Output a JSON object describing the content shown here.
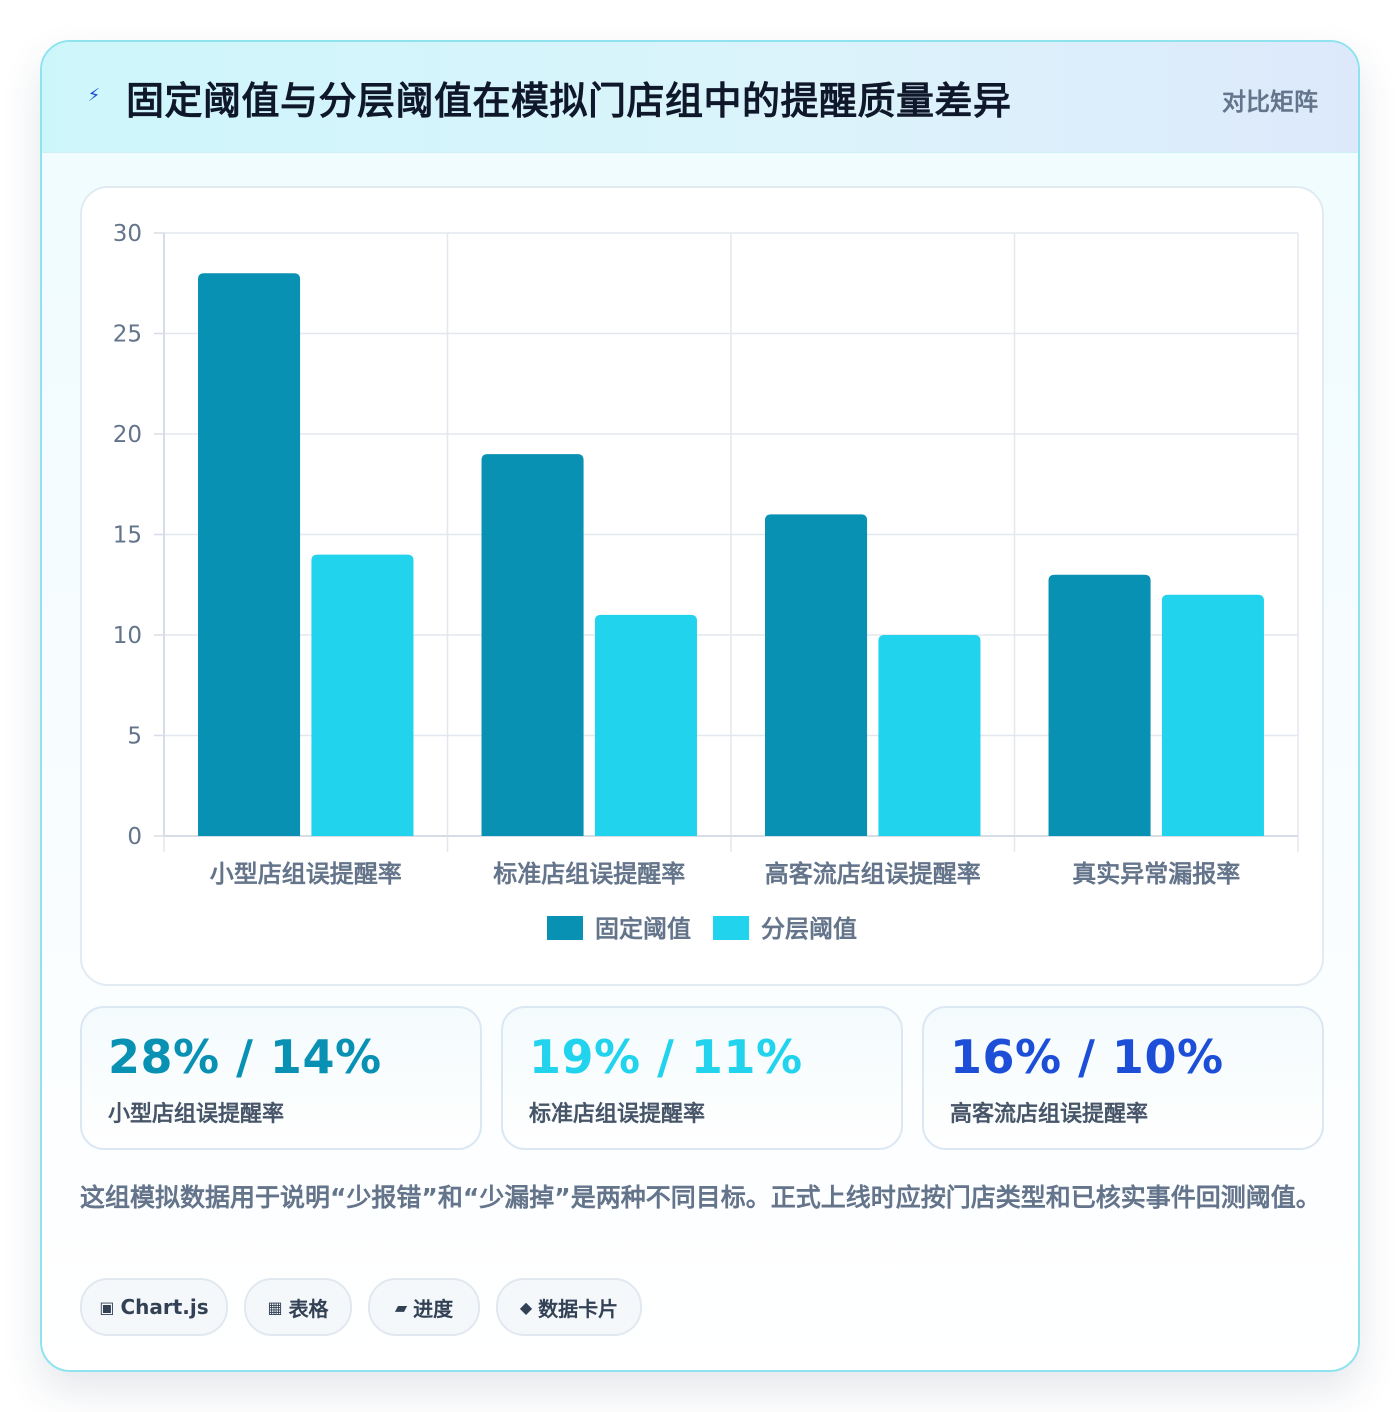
{
  "header": {
    "icon": "lightning-icon",
    "title": "固定阈值与分层阈值在模拟门店组中的提醒质量差异",
    "tag": "对比矩阵"
  },
  "colors": {
    "fixed": "#0891b2",
    "tiered": "#22d3ee",
    "stat1": "#0891b2",
    "stat2": "#22d3ee",
    "stat3": "#1d4ed8"
  },
  "chart_data": {
    "type": "bar",
    "categories": [
      "小型店组误提醒率",
      "标准店组误提醒率",
      "高客流店组误提醒率",
      "真实异常漏报率"
    ],
    "series": [
      {
        "name": "固定阈值",
        "values": [
          28,
          19,
          16,
          13
        ],
        "color": "#0891b2"
      },
      {
        "name": "分层阈值",
        "values": [
          14,
          11,
          10,
          12
        ],
        "color": "#22d3ee"
      }
    ],
    "ylim": [
      0,
      30
    ],
    "yticks": [
      "0",
      "5",
      "10",
      "15",
      "20",
      "25",
      "30"
    ],
    "grid": true,
    "legend_position": "bottom"
  },
  "stats": [
    {
      "value": "28% / 14%",
      "label": "小型店组误提醒率"
    },
    {
      "value": "19% / 11%",
      "label": "标准店组误提醒率"
    },
    {
      "value": "16% / 10%",
      "label": "高客流店组误提醒率"
    }
  ],
  "note": "这组模拟数据用于说明“少报错”和“少漏掉”是两种不同目标。正式上线时应按门店类型和已核实事件回测阈值。",
  "chips": [
    {
      "icon": "square-icon",
      "glyph": "▣",
      "label": "Chart.js"
    },
    {
      "icon": "table-icon",
      "glyph": "▦",
      "label": "表格"
    },
    {
      "icon": "progress-icon",
      "glyph": "▰",
      "label": "进度"
    },
    {
      "icon": "diamond-icon",
      "glyph": "◆",
      "label": "数据卡片"
    }
  ]
}
